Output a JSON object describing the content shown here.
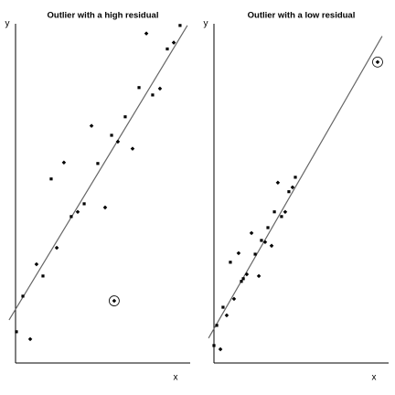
{
  "chart_data": [
    {
      "type": "scatter",
      "title": "Outlier with a high residual",
      "x_label": "x",
      "y_label": "y",
      "xlim": [
        0,
        100
      ],
      "ylim": [
        0,
        101
      ],
      "color": "#000000",
      "x": [
        0.5,
        8.4,
        4.2,
        12.0,
        15.7,
        23.6,
        20.4,
        27.7,
        31.9,
        35.6,
        39.3,
        43.5,
        47.1,
        51.3,
        55.0,
        58.6,
        62.8,
        67.0,
        70.7,
        74.9,
        78.5,
        82.7,
        86.9,
        90.6,
        94.2,
        56.5
      ],
      "y": [
        9.3,
        7.1,
        19.9,
        29.4,
        25.9,
        34.3,
        54.8,
        59.7,
        43.6,
        45.0,
        47.4,
        70.6,
        59.4,
        46.3,
        67.8,
        65.9,
        73.3,
        63.8,
        82.0,
        98.1,
        79.8,
        81.7,
        93.5,
        95.4,
        100.5,
        18.5
      ],
      "fit_line": {
        "x": [
          -3.7,
          98.4
        ],
        "y": [
          12.8,
          100.5
        ]
      },
      "highlighted_point": 25
    },
    {
      "type": "scatter",
      "title": "Outlier with a low residual",
      "x_label": "x",
      "y_label": "y",
      "xlim": [
        0,
        100
      ],
      "ylim": [
        0,
        101
      ],
      "color": "#000000",
      "x": [
        0,
        3.7,
        1.6,
        7.3,
        5.2,
        11.5,
        9.4,
        14.1,
        15.7,
        18.8,
        16.8,
        21.5,
        23.6,
        25.7,
        27.2,
        29.3,
        30.9,
        33.0,
        34.6,
        36.6,
        38.7,
        40.8,
        42.9,
        45.0,
        46.6,
        93.7
      ],
      "y": [
        5.2,
        4.1,
        11.2,
        14.2,
        16.6,
        19.1,
        30.0,
        32.7,
        24.3,
        26.4,
        25.1,
        38.7,
        32.4,
        25.9,
        36.5,
        36.0,
        40.3,
        34.9,
        45.0,
        53.7,
        43.6,
        45.0,
        51.0,
        52.3,
        55.3,
        89.6
      ],
      "fit_line": {
        "x": [
          -3.1,
          96.3
        ],
        "y": [
          7.4,
          97.3
        ]
      },
      "highlighted_point": 25
    }
  ]
}
